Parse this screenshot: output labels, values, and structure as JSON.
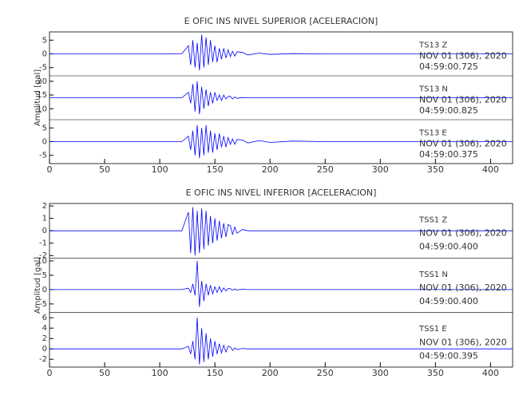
{
  "chart_data": [
    {
      "type": "line",
      "title": "E OFIC INS NIVEL SUPERIOR [ACELERACION]",
      "ylabel": "Amplitud [gal]",
      "xlim": [
        0,
        420
      ],
      "xticks": [
        0,
        50,
        100,
        150,
        200,
        250,
        300,
        350,
        400
      ],
      "x": [
        0,
        50,
        100,
        120,
        126,
        128,
        130,
        132,
        134,
        136,
        138,
        140,
        142,
        144,
        146,
        148,
        150,
        152,
        154,
        156,
        158,
        160,
        162,
        164,
        166,
        168,
        170,
        175,
        180,
        190,
        200,
        220,
        250,
        300,
        350,
        400,
        420
      ],
      "series": [
        {
          "name": "TS13   Z",
          "date": "NOV 01 (306), 2020",
          "time": "04:59:00.725",
          "color": "#0000ff",
          "ylim": [
            -8,
            8
          ],
          "yticks": [
            -5,
            0,
            5
          ],
          "values": [
            0,
            0,
            0,
            0.1,
            3,
            -4,
            5,
            -5,
            4,
            -6,
            7,
            -5,
            6,
            -4,
            5,
            -3,
            3,
            -3,
            2,
            -2,
            2,
            -1.5,
            1.5,
            -1,
            1,
            -0.8,
            0.8,
            0.5,
            -0.4,
            0.3,
            -0.2,
            0.1,
            0,
            0,
            0,
            0,
            0
          ]
        },
        {
          "name": "TS13   N",
          "date": "NOV 01 (306), 2020",
          "time": "04:59:00.825",
          "color": "#0000ff",
          "ylim": [
            6,
            22
          ],
          "yticks": [
            10,
            15,
            20
          ],
          "values": [
            14,
            14,
            14,
            14,
            16,
            12,
            19,
            9,
            20,
            8,
            18,
            10,
            17,
            11,
            16,
            12,
            16,
            13,
            15,
            13,
            15,
            13.5,
            14.5,
            14.5,
            13.6,
            14.3,
            13.8,
            14.1,
            14,
            14,
            14,
            14,
            14,
            14,
            14,
            14,
            14
          ]
        },
        {
          "name": "TS13   E",
          "date": "NOV 01 (306), 2020",
          "time": "04:59:00.375",
          "color": "#0000ff",
          "ylim": [
            -8,
            8
          ],
          "yticks": [
            -5,
            0,
            5
          ],
          "values": [
            0,
            0,
            0,
            0,
            2,
            -3,
            4,
            -5,
            6,
            -6,
            5,
            -5,
            6,
            -4,
            4,
            -4,
            3,
            -3,
            3,
            -2,
            2,
            -2,
            1.5,
            -1,
            1,
            -1,
            0.8,
            0.6,
            -0.5,
            0.4,
            -0.3,
            0.2,
            0,
            0,
            0,
            0,
            0
          ]
        }
      ]
    },
    {
      "type": "line",
      "title": "E OFIC INS NIVEL INFERIOR [ACELERACION]",
      "ylabel": "Amplitud [gal]",
      "xlim": [
        0,
        420
      ],
      "xticks": [
        0,
        50,
        100,
        150,
        200,
        250,
        300,
        350,
        400
      ],
      "x": [
        0,
        50,
        100,
        120,
        126,
        128,
        130,
        132,
        134,
        136,
        138,
        140,
        142,
        144,
        146,
        148,
        150,
        152,
        154,
        156,
        158,
        160,
        162,
        164,
        166,
        168,
        170,
        175,
        180,
        190,
        200,
        220,
        250,
        300,
        350,
        400,
        420
      ],
      "series": [
        {
          "name": "TSS1   Z",
          "date": "NOV 01 (306), 2020",
          "time": "04:59:00.400",
          "color": "#0000ff",
          "ylim": [
            -2.2,
            2.2
          ],
          "yticks": [
            -2,
            -1,
            0,
            1,
            2
          ],
          "values": [
            0,
            0,
            0,
            0,
            1.5,
            -1.8,
            1.9,
            -2,
            1.6,
            -1.8,
            1.8,
            -1.5,
            1.6,
            -1.2,
            1.2,
            -1,
            1,
            -0.8,
            0.8,
            -0.6,
            0.6,
            -0.5,
            0.5,
            0.4,
            -0.3,
            0.3,
            -0.2,
            0.1,
            0,
            0,
            0,
            0,
            0,
            0,
            0,
            0,
            0
          ]
        },
        {
          "name": "TSS1   N",
          "date": "NOV 01 (306), 2020",
          "time": "04:59:00.400",
          "color": "#0000ff",
          "ylim": [
            -8,
            11
          ],
          "yticks": [
            -5,
            0,
            5,
            10
          ],
          "values": [
            0,
            0,
            0,
            0,
            0.5,
            -1,
            2,
            -2,
            10,
            -6,
            3,
            -4,
            2,
            -2,
            1.5,
            -1.5,
            1,
            -1,
            1,
            -0.8,
            0.6,
            -0.5,
            0.4,
            0.3,
            -0.2,
            0.2,
            -0.1,
            0.1,
            0,
            0,
            0,
            0,
            0,
            0,
            0,
            0,
            0
          ]
        },
        {
          "name": "TSS1   E",
          "date": "NOV 01 (306), 2020",
          "time": "04:59:00.395",
          "color": "#0000ff",
          "ylim": [
            -3.5,
            7
          ],
          "yticks": [
            -2,
            0,
            2,
            4,
            6
          ],
          "values": [
            0,
            0,
            0,
            0,
            0.5,
            -1,
            1.5,
            -2,
            6,
            -3,
            4,
            -2.5,
            3,
            -2,
            2,
            -1.5,
            1.5,
            -1,
            1,
            -0.8,
            0.7,
            -0.6,
            0.5,
            0.4,
            -0.3,
            0.2,
            -0.1,
            0.1,
            0,
            0,
            0,
            0,
            0,
            0,
            0,
            0,
            0
          ]
        }
      ]
    }
  ]
}
